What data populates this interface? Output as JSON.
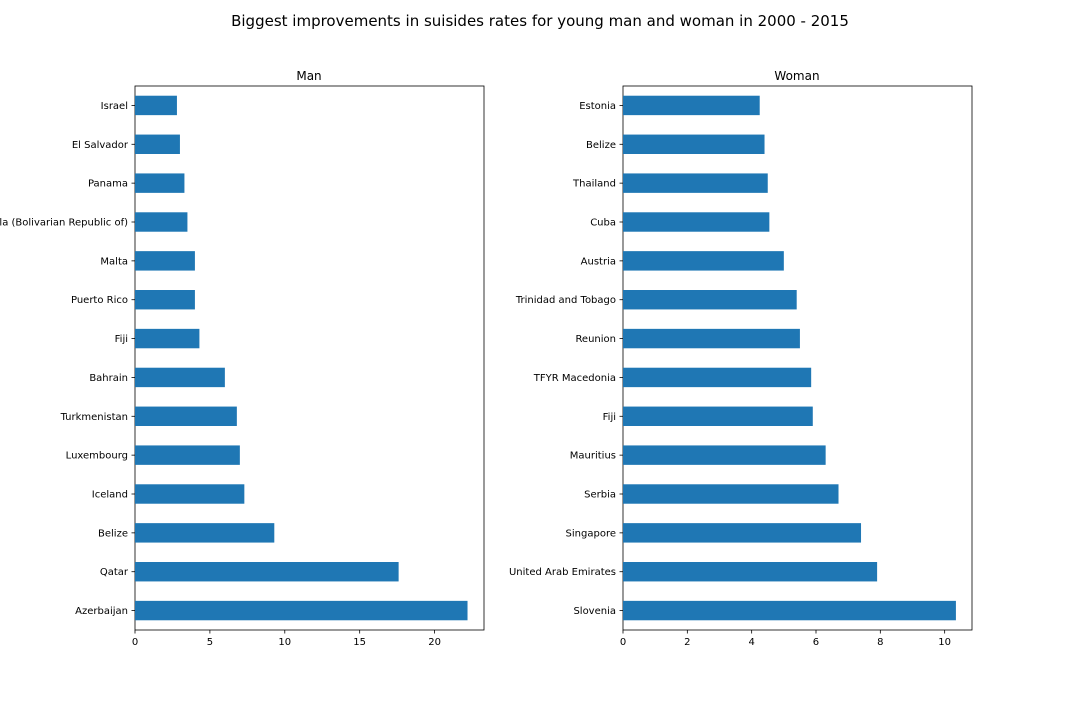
{
  "figure": {
    "title": "Biggest improvements in suisides rates for young man and woman in 2000 - 2015",
    "bar_color": "#1f77b4"
  },
  "chart_data": [
    {
      "type": "bar",
      "orientation": "horizontal",
      "title": "Man",
      "xlabel": "",
      "ylabel": "",
      "xlim": [
        0,
        23.3
      ],
      "xticks": [
        0,
        5,
        10,
        15,
        20
      ],
      "xtick_labels": [
        "0",
        "5",
        "10",
        "15",
        "20"
      ],
      "grid": false,
      "categories": [
        "Israel",
        "El Salvador",
        "Panama",
        "Venezuela (Bolivarian Republic of)",
        "Malta",
        "Puerto Rico",
        "Fiji",
        "Bahrain",
        "Turkmenistan",
        "Luxembourg",
        "Iceland",
        "Belize",
        "Qatar",
        "Azerbaijan"
      ],
      "values": [
        2.8,
        3.0,
        3.3,
        3.5,
        4.0,
        4.0,
        4.3,
        6.0,
        6.8,
        7.0,
        7.3,
        9.3,
        17.6,
        22.2
      ]
    },
    {
      "type": "bar",
      "orientation": "horizontal",
      "title": "Woman",
      "xlabel": "",
      "ylabel": "",
      "xlim": [
        0,
        10.85
      ],
      "xticks": [
        0,
        2,
        4,
        6,
        8,
        10
      ],
      "xtick_labels": [
        "0",
        "2",
        "4",
        "6",
        "8",
        "10"
      ],
      "grid": false,
      "categories": [
        "Estonia",
        "Belize",
        "Thailand",
        "Cuba",
        "Austria",
        "Trinidad and Tobago",
        "Reunion",
        "TFYR Macedonia",
        "Fiji",
        "Mauritius",
        "Serbia",
        "Singapore",
        "United Arab Emirates",
        "Slovenia"
      ],
      "values": [
        4.25,
        4.4,
        4.5,
        4.55,
        5.0,
        5.4,
        5.5,
        5.85,
        5.9,
        6.3,
        6.7,
        7.4,
        7.9,
        10.35
      ]
    }
  ]
}
